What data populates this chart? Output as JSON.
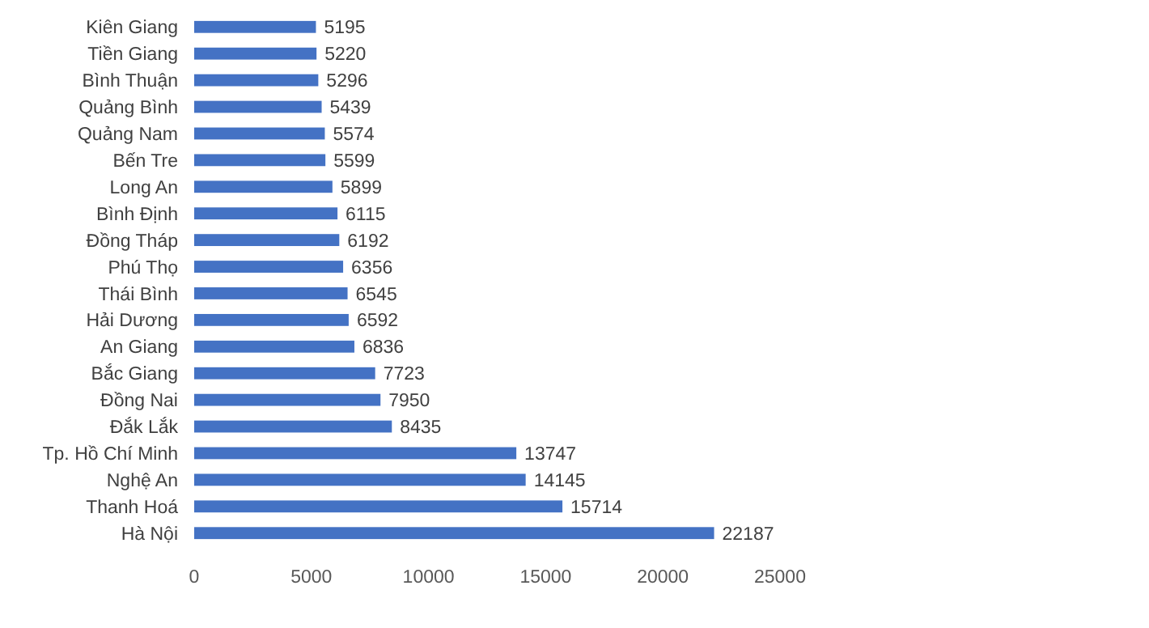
{
  "chart_data": {
    "type": "bar",
    "orientation": "horizontal",
    "categories": [
      "Kiên Giang",
      "Tiền Giang",
      "Bình Thuận",
      "Quảng Bình",
      "Quảng Nam",
      "Bến Tre",
      "Long An",
      "Bình Định",
      "Đồng Tháp",
      "Phú Thọ",
      "Thái Bình",
      "Hải Dương",
      "An Giang",
      "Bắc Giang",
      "Đồng Nai",
      "Đắk Lắk",
      "Tp. Hồ Chí Minh",
      "Nghệ An",
      "Thanh Hoá",
      "Hà Nội"
    ],
    "values": [
      5195,
      5220,
      5296,
      5439,
      5574,
      5599,
      5899,
      6115,
      6192,
      6356,
      6545,
      6592,
      6836,
      7723,
      7950,
      8435,
      13747,
      14145,
      15714,
      22187
    ],
    "color": "#4472c4",
    "xlim": [
      0,
      25000
    ],
    "xticks": [
      0,
      5000,
      10000,
      15000,
      20000,
      25000
    ],
    "data_labels": true
  }
}
